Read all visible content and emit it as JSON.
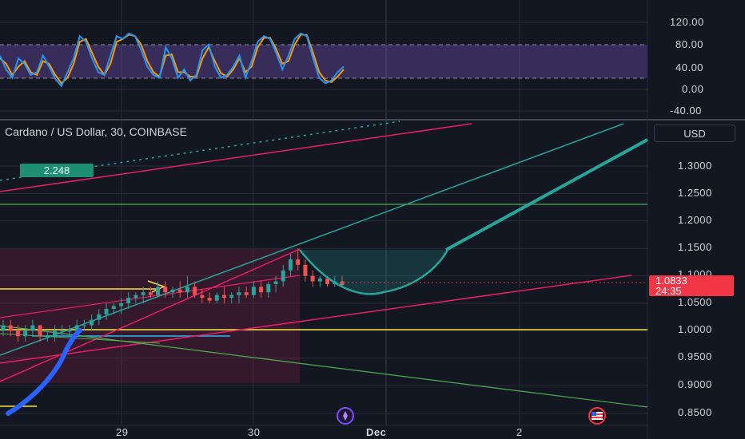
{
  "symbol_title": "Cardano / US Dollar, 30, COINBASE",
  "currency_label": "USD",
  "last_price": "1.0833",
  "countdown": "24:35",
  "alert_value": "2.248",
  "oscillator": {
    "y_ticks": [
      "120.00",
      "80.00",
      "40.00",
      "0.00",
      "-40.00"
    ]
  },
  "price_axis": {
    "ticks": [
      "1.3000",
      "1.2500",
      "1.2000",
      "1.1500",
      "1.1000",
      "1.0500",
      "1.0000",
      "0.9500",
      "0.9000",
      "0.8500"
    ]
  },
  "time_axis": {
    "labels": [
      "29",
      "30",
      "Dec",
      "2"
    ]
  },
  "colors": {
    "background": "#131722",
    "grid": "#2a2e39",
    "teal": "#26a69a",
    "pink": "#e91e63",
    "yellow": "#f5e447",
    "green": "#4caf50",
    "blue": "#2962ff",
    "red_tag": "#f23645",
    "stoch_k": "#2196f3",
    "stoch_d": "#ff9800",
    "osc_band": "#7e57c2"
  },
  "icons": {
    "event_icon": "lightning-event-icon",
    "flag_icon": "us-flag-icon"
  },
  "chart_data": [
    {
      "type": "line",
      "title": "",
      "ylim": [
        -40,
        120
      ],
      "band": [
        20,
        80
      ],
      "series": [
        {
          "values": [
            60,
            35,
            20,
            55,
            45,
            25,
            30,
            60,
            40,
            18,
            5,
            30,
            55,
            95,
            85,
            55,
            30,
            25,
            60,
            95,
            90,
            100,
            95,
            70,
            40,
            25,
            20,
            75,
            55,
            20,
            35,
            15,
            25,
            70,
            80,
            40,
            20,
            25,
            40,
            60,
            20,
            50,
            85,
            95,
            90,
            65,
            35,
            60,
            90,
            100,
            95,
            55,
            20,
            10,
            15,
            30,
            40
          ]
        },
        {
          "values": [
            55,
            45,
            25,
            40,
            50,
            30,
            25,
            50,
            45,
            25,
            10,
            20,
            45,
            85,
            90,
            65,
            40,
            25,
            45,
            85,
            90,
            98,
            95,
            80,
            50,
            30,
            22,
            60,
            62,
            30,
            30,
            22,
            22,
            55,
            75,
            50,
            28,
            22,
            35,
            55,
            30,
            40,
            75,
            92,
            92,
            72,
            45,
            50,
            80,
            98,
            97,
            65,
            30,
            15,
            12,
            22,
            35
          ]
        }
      ]
    },
    {
      "type": "candlestick",
      "title": "",
      "ylim": [
        0.83,
        1.36
      ],
      "candles": [
        [
          1.0,
          1.02,
          0.99,
          1.01
        ],
        [
          1.01,
          1.02,
          0.99,
          1.0
        ],
        [
          1.0,
          1.01,
          0.98,
          0.99
        ],
        [
          0.99,
          1.01,
          0.98,
          1.0
        ],
        [
          1.0,
          1.02,
          0.99,
          1.01
        ],
        [
          1.01,
          1.01,
          0.98,
          0.99
        ],
        [
          0.99,
          1.0,
          0.98,
          0.99
        ],
        [
          0.99,
          1.01,
          0.98,
          1.0
        ],
        [
          1.0,
          1.01,
          0.99,
          1.0
        ],
        [
          1.0,
          1.01,
          0.99,
          1.0
        ],
        [
          1.0,
          1.02,
          0.99,
          1.01
        ],
        [
          1.01,
          1.02,
          1.0,
          1.01
        ],
        [
          1.01,
          1.03,
          1.0,
          1.02
        ],
        [
          1.02,
          1.04,
          1.01,
          1.03
        ],
        [
          1.03,
          1.05,
          1.02,
          1.04
        ],
        [
          1.04,
          1.05,
          1.03,
          1.045
        ],
        [
          1.045,
          1.06,
          1.03,
          1.05
        ],
        [
          1.05,
          1.07,
          1.04,
          1.06
        ],
        [
          1.06,
          1.07,
          1.05,
          1.065
        ],
        [
          1.065,
          1.08,
          1.05,
          1.07
        ],
        [
          1.07,
          1.08,
          1.06,
          1.065
        ],
        [
          1.065,
          1.09,
          1.06,
          1.08
        ],
        [
          1.08,
          1.09,
          1.06,
          1.07
        ],
        [
          1.07,
          1.08,
          1.06,
          1.075
        ],
        [
          1.075,
          1.09,
          1.06,
          1.07
        ],
        [
          1.07,
          1.1,
          1.06,
          1.08
        ],
        [
          1.08,
          1.09,
          1.06,
          1.065
        ],
        [
          1.065,
          1.075,
          1.05,
          1.06
        ],
        [
          1.06,
          1.07,
          1.05,
          1.055
        ],
        [
          1.055,
          1.07,
          1.05,
          1.065
        ],
        [
          1.065,
          1.08,
          1.05,
          1.06
        ],
        [
          1.06,
          1.07,
          1.05,
          1.065
        ],
        [
          1.065,
          1.08,
          1.05,
          1.07
        ],
        [
          1.07,
          1.08,
          1.06,
          1.065
        ],
        [
          1.065,
          1.09,
          1.06,
          1.08
        ],
        [
          1.08,
          1.09,
          1.06,
          1.07
        ],
        [
          1.07,
          1.09,
          1.06,
          1.085
        ],
        [
          1.085,
          1.1,
          1.07,
          1.09
        ],
        [
          1.09,
          1.12,
          1.08,
          1.11
        ],
        [
          1.11,
          1.14,
          1.1,
          1.13
        ],
        [
          1.13,
          1.15,
          1.11,
          1.12
        ],
        [
          1.12,
          1.13,
          1.09,
          1.1
        ],
        [
          1.1,
          1.11,
          1.08,
          1.09
        ],
        [
          1.09,
          1.1,
          1.08,
          1.095
        ],
        [
          1.095,
          1.1,
          1.08,
          1.085
        ],
        [
          1.085,
          1.1,
          1.08,
          1.09
        ],
        [
          1.09,
          1.1,
          1.08,
          1.083
        ]
      ],
      "projection_path": [
        [
          1.083,
          0
        ],
        [
          1.065,
          1
        ],
        [
          1.075,
          2
        ],
        [
          1.11,
          3
        ],
        [
          1.145,
          4
        ],
        [
          1.34,
          5
        ]
      ]
    }
  ]
}
